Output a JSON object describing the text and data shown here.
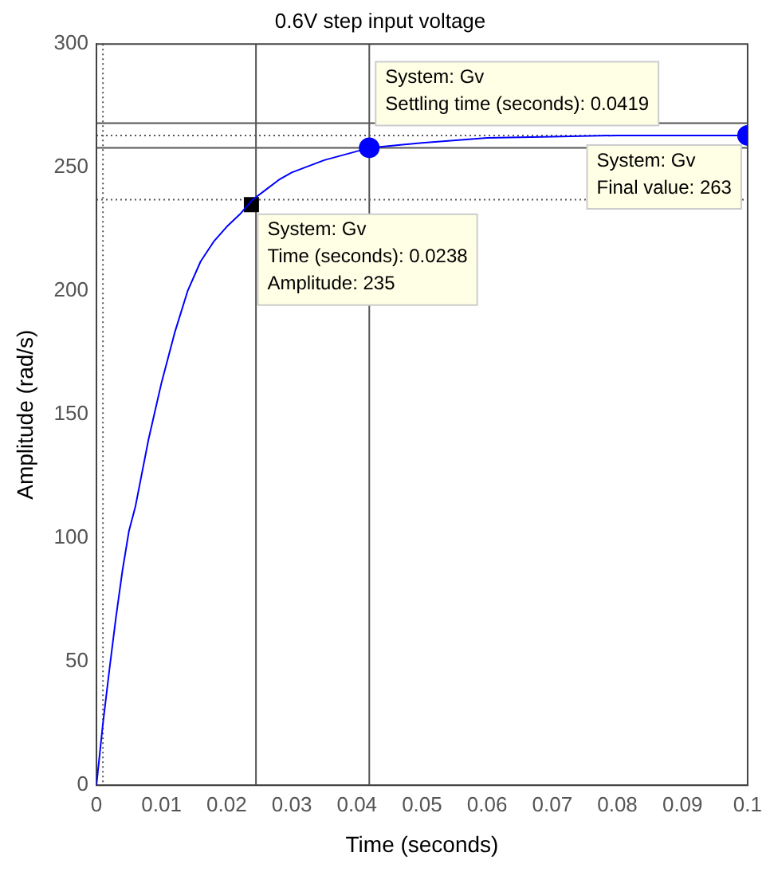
{
  "chart_data": {
    "type": "line",
    "title": "0.6V step input voltage",
    "xlabel": "Time (seconds)",
    "ylabel": "Amplitude (rad/s)",
    "xlim": [
      0,
      0.1
    ],
    "xticks": [
      0,
      0.01,
      0.02,
      0.03,
      0.04,
      0.05,
      0.06,
      0.07,
      0.08,
      0.09,
      0.1
    ],
    "ylim": [
      0,
      300
    ],
    "yticks": [
      0,
      50,
      100,
      150,
      200,
      250,
      300
    ],
    "grid": false,
    "legend": false,
    "series": [
      {
        "color": "#0000ff",
        "marker": "none",
        "x": [
          0,
          0.001,
          0.002,
          0.003,
          0.004,
          0.005,
          0.006,
          0.008,
          0.01,
          0.012,
          0.014,
          0.016,
          0.018,
          0.02,
          0.022,
          0.024,
          0.026,
          0.028,
          0.03,
          0.035,
          0.042,
          0.05,
          0.06,
          0.07,
          0.08,
          0.1
        ],
        "values": [
          0,
          25,
          47,
          68,
          87,
          103,
          113,
          140,
          163,
          183,
          200,
          212,
          220,
          226,
          231,
          237,
          241,
          245,
          248,
          253,
          258,
          260,
          262,
          262.5,
          263,
          263
        ]
      },
      {
        "type": "scatter",
        "color": "#000000",
        "marker": "square",
        "x": [
          0.0238
        ],
        "values": [
          235
        ]
      },
      {
        "type": "scatter",
        "color": "#0000ff",
        "marker": "circle",
        "x": [
          0.0419,
          0.1
        ],
        "values": [
          258,
          263
        ]
      }
    ],
    "ref_lines": [
      {
        "axis": "y",
        "value": 268,
        "color": "#555555"
      },
      {
        "axis": "y",
        "value": 263,
        "color": "#555555",
        "line_style": "dotted"
      },
      {
        "axis": "y",
        "value": 258,
        "color": "#555555"
      },
      {
        "axis": "y",
        "value": 237,
        "color": "#555555",
        "line_style": "dotted"
      },
      {
        "axis": "x",
        "value": 0.001,
        "color": "#555555",
        "line_style": "dotted"
      },
      {
        "axis": "x",
        "value": 0.0245,
        "color": "#555555"
      },
      {
        "axis": "x",
        "value": 0.0419,
        "color": "#555555"
      }
    ],
    "annotations": [
      {
        "text": "System: Gv\nTime (seconds): 0.0238\nAmplitude: 235",
        "x": 0.0238,
        "y": 235
      },
      {
        "text": "System: Gv\nSettling time (seconds): 0.0419",
        "x": 0.0419,
        "y": 258
      },
      {
        "text": "System: Gv\nFinal value: 263",
        "x": 0.1,
        "y": 263
      }
    ]
  }
}
